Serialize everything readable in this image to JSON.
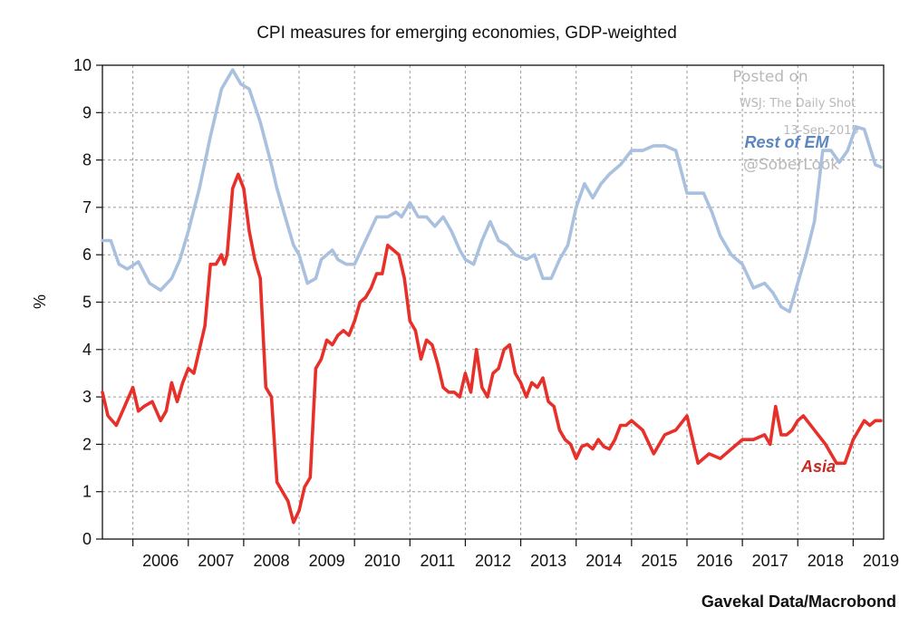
{
  "chart_data": {
    "type": "line",
    "title": "CPI measures for emerging economies, GDP-weighted",
    "ylabel": "%",
    "xlabel": "",
    "ylim": [
      0,
      10
    ],
    "xlim": [
      2005.45,
      2019.55
    ],
    "yticks": [
      "0",
      "1",
      "2",
      "3",
      "4",
      "5",
      "6",
      "7",
      "8",
      "9",
      "10"
    ],
    "xticks": [
      "2006",
      "2007",
      "2008",
      "2009",
      "2010",
      "2011",
      "2012",
      "2013",
      "2014",
      "2015",
      "2016",
      "2017",
      "2018",
      "2019"
    ],
    "grid": true,
    "source": "Gavekal Data/Macrobond",
    "series": [
      {
        "name": "Rest of EM",
        "color": "#a9c1df",
        "x": [
          2005.45,
          2005.6,
          2005.75,
          2005.9,
          2006.1,
          2006.3,
          2006.5,
          2006.7,
          2006.85,
          2007.0,
          2007.2,
          2007.4,
          2007.6,
          2007.8,
          2007.95,
          2008.1,
          2008.3,
          2008.5,
          2008.6,
          2008.75,
          2008.9,
          2009.0,
          2009.15,
          2009.3,
          2009.4,
          2009.6,
          2009.7,
          2009.85,
          2010.0,
          2010.2,
          2010.4,
          2010.6,
          2010.75,
          2010.85,
          2011.0,
          2011.15,
          2011.3,
          2011.45,
          2011.6,
          2011.75,
          2011.9,
          2012.0,
          2012.15,
          2012.3,
          2012.45,
          2012.6,
          2012.75,
          2012.9,
          2013.1,
          2013.25,
          2013.4,
          2013.55,
          2013.7,
          2013.85,
          2014.0,
          2014.15,
          2014.3,
          2014.45,
          2014.6,
          2014.8,
          2015.0,
          2015.2,
          2015.4,
          2015.6,
          2015.8,
          2016.0,
          2016.15,
          2016.3,
          2016.45,
          2016.6,
          2016.8,
          2017.0,
          2017.2,
          2017.4,
          2017.55,
          2017.7,
          2017.85,
          2018.0,
          2018.15,
          2018.3,
          2018.45,
          2018.6,
          2018.75,
          2018.9,
          2019.05,
          2019.2,
          2019.4,
          2019.5
        ],
        "values": [
          6.3,
          6.3,
          5.8,
          5.7,
          5.85,
          5.4,
          5.25,
          5.5,
          5.9,
          6.5,
          7.4,
          8.5,
          9.5,
          9.9,
          9.6,
          9.5,
          8.8,
          7.9,
          7.4,
          6.8,
          6.2,
          6.0,
          5.4,
          5.5,
          5.9,
          6.1,
          5.9,
          5.8,
          5.8,
          6.3,
          6.8,
          6.8,
          6.9,
          6.8,
          7.1,
          6.8,
          6.8,
          6.6,
          6.8,
          6.5,
          6.1,
          5.9,
          5.8,
          6.3,
          6.7,
          6.3,
          6.2,
          6.0,
          5.9,
          6.0,
          5.5,
          5.5,
          5.9,
          6.2,
          7.0,
          7.5,
          7.2,
          7.5,
          7.7,
          7.9,
          8.2,
          8.2,
          8.3,
          8.3,
          8.2,
          7.3,
          7.3,
          7.3,
          6.9,
          6.4,
          6.0,
          5.8,
          5.3,
          5.4,
          5.2,
          4.9,
          4.8,
          5.4,
          6.0,
          6.7,
          8.2,
          8.2,
          7.95,
          8.2,
          8.7,
          8.65,
          7.9,
          7.85
        ]
      },
      {
        "name": "Asia",
        "color": "#e8302a",
        "x": [
          2005.45,
          2005.55,
          2005.7,
          2005.85,
          2006.0,
          2006.1,
          2006.2,
          2006.35,
          2006.5,
          2006.6,
          2006.7,
          2006.8,
          2006.9,
          2007.0,
          2007.1,
          2007.2,
          2007.3,
          2007.4,
          2007.5,
          2007.6,
          2007.65,
          2007.7,
          2007.8,
          2007.9,
          2008.0,
          2008.1,
          2008.2,
          2008.3,
          2008.4,
          2008.5,
          2008.6,
          2008.7,
          2008.8,
          2008.9,
          2009.0,
          2009.1,
          2009.2,
          2009.3,
          2009.4,
          2009.5,
          2009.6,
          2009.7,
          2009.8,
          2009.9,
          2010.0,
          2010.1,
          2010.2,
          2010.3,
          2010.4,
          2010.5,
          2010.6,
          2010.7,
          2010.8,
          2010.9,
          2011.0,
          2011.1,
          2011.2,
          2011.3,
          2011.4,
          2011.5,
          2011.6,
          2011.7,
          2011.8,
          2011.9,
          2012.0,
          2012.1,
          2012.2,
          2012.3,
          2012.4,
          2012.5,
          2012.6,
          2012.7,
          2012.8,
          2012.9,
          2013.0,
          2013.1,
          2013.2,
          2013.3,
          2013.4,
          2013.5,
          2013.6,
          2013.7,
          2013.8,
          2013.9,
          2014.0,
          2014.1,
          2014.2,
          2014.3,
          2014.4,
          2014.5,
          2014.6,
          2014.7,
          2014.8,
          2014.9,
          2015.0,
          2015.2,
          2015.4,
          2015.6,
          2015.8,
          2016.0,
          2016.2,
          2016.4,
          2016.6,
          2016.8,
          2017.0,
          2017.2,
          2017.4,
          2017.5,
          2017.6,
          2017.7,
          2017.8,
          2017.9,
          2018.0,
          2018.1,
          2018.3,
          2018.5,
          2018.7,
          2018.85,
          2019.0,
          2019.1,
          2019.2,
          2019.3,
          2019.4,
          2019.5
        ],
        "values": [
          3.1,
          2.6,
          2.4,
          2.8,
          3.2,
          2.7,
          2.8,
          2.9,
          2.5,
          2.7,
          3.3,
          2.9,
          3.3,
          3.6,
          3.5,
          4.0,
          4.5,
          5.8,
          5.8,
          6.0,
          5.8,
          6.0,
          7.4,
          7.7,
          7.4,
          6.5,
          5.9,
          5.5,
          3.2,
          3.0,
          1.2,
          1.0,
          0.8,
          0.35,
          0.6,
          1.1,
          1.3,
          3.6,
          3.8,
          4.2,
          4.1,
          4.3,
          4.4,
          4.3,
          4.6,
          5.0,
          5.1,
          5.3,
          5.6,
          5.6,
          6.2,
          6.1,
          6.0,
          5.5,
          4.6,
          4.4,
          3.8,
          4.2,
          4.1,
          3.7,
          3.2,
          3.1,
          3.1,
          3.0,
          3.5,
          3.1,
          4.0,
          3.2,
          3.0,
          3.5,
          3.6,
          4.0,
          4.1,
          3.5,
          3.3,
          3.0,
          3.3,
          3.2,
          3.4,
          2.9,
          2.8,
          2.3,
          2.1,
          2.0,
          1.7,
          1.95,
          2.0,
          1.9,
          2.1,
          1.95,
          1.9,
          2.1,
          2.4,
          2.4,
          2.5,
          2.3,
          1.8,
          2.2,
          2.3,
          2.6,
          1.6,
          1.8,
          1.7,
          1.9,
          2.1,
          2.1,
          2.2,
          2.0,
          2.8,
          2.2,
          2.2,
          2.3,
          2.5,
          2.6,
          2.3,
          2.0,
          1.6,
          1.6,
          2.1,
          2.3,
          2.5,
          2.4,
          2.5,
          2.5
        ]
      }
    ],
    "annotations": {
      "rest_of_em_label": "Rest of EM",
      "asia_label": "Asia"
    }
  },
  "watermark": {
    "line1": "Posted on",
    "line2": "WSJ: The Daily Shot",
    "line3": "13-Sep-2019",
    "line4": "@SoberLook"
  },
  "colors": {
    "rest_of_em": "#a9c1df",
    "rest_of_em_label": "#5b87c1",
    "asia": "#e8302a",
    "asia_label": "#c62a24",
    "grid": "#9a9a9a"
  }
}
